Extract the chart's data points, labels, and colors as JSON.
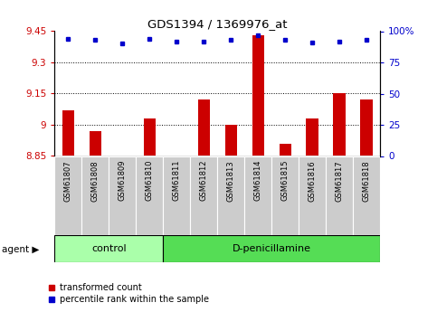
{
  "title": "GDS1394 / 1369976_at",
  "samples": [
    "GSM61807",
    "GSM61808",
    "GSM61809",
    "GSM61810",
    "GSM61811",
    "GSM61812",
    "GSM61813",
    "GSM61814",
    "GSM61815",
    "GSM61816",
    "GSM61817",
    "GSM61818"
  ],
  "red_values": [
    9.07,
    8.97,
    8.85,
    9.03,
    8.85,
    9.12,
    9.0,
    9.43,
    8.91,
    9.03,
    9.15,
    9.12
  ],
  "blue_values": [
    94,
    93,
    90,
    94,
    92,
    92,
    93,
    97,
    93,
    91,
    92,
    93
  ],
  "ylim_left": [
    8.85,
    9.45
  ],
  "ylim_right": [
    0,
    100
  ],
  "yticks_left": [
    8.85,
    9.0,
    9.15,
    9.3,
    9.45
  ],
  "yticks_right": [
    0,
    25,
    50,
    75,
    100
  ],
  "ytick_labels_left": [
    "8.85",
    "9",
    "9.15",
    "9.3",
    "9.45"
  ],
  "ytick_labels_right": [
    "0",
    "25",
    "50",
    "75",
    "100%"
  ],
  "control_count": 4,
  "dpenicillamine_count": 8,
  "control_label": "control",
  "treatment_label": "D-penicillamine",
  "agent_label": "agent",
  "bar_color": "#cc0000",
  "dot_color": "#0000cc",
  "control_bg": "#aaffaa",
  "treatment_bg": "#55dd55",
  "sample_bg": "#cccccc",
  "grid_color": "#000000",
  "legend_red": "transformed count",
  "legend_blue": "percentile rank within the sample",
  "bar_bottom": 8.85,
  "bar_width": 0.45
}
